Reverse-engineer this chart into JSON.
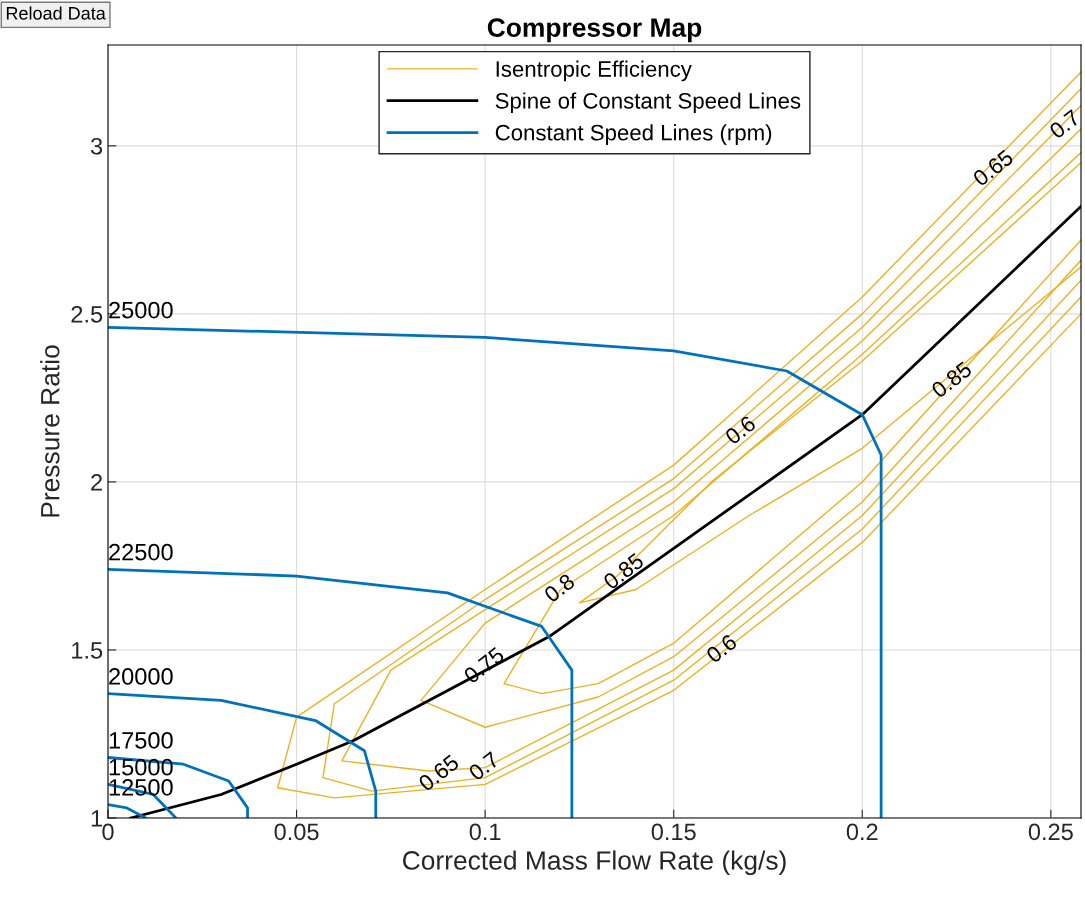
{
  "chart_data": {
    "type": "line",
    "title": "Compressor Map",
    "xlabel": "Corrected Mass Flow Rate (kg/s)",
    "ylabel": "Pressure Ratio",
    "xlim": [
      0,
      0.258
    ],
    "ylim": [
      1,
      3.3
    ],
    "xticks": [
      0,
      0.05,
      0.1,
      0.15,
      0.2,
      0.25
    ],
    "yticks": [
      1,
      1.5,
      2,
      2.5,
      3
    ],
    "grid": true,
    "legend": "top",
    "marker": "none",
    "line_style": "solid",
    "series": [
      {
        "name": "Isentropic Efficiency",
        "color": "#edb120",
        "x": [
          0.258,
          0.2,
          0.15,
          0.1,
          0.05,
          0.045,
          0.06,
          0.1,
          0.15,
          0.2,
          0.258
        ],
        "values": [
          3.22,
          2.55,
          2.05,
          1.68,
          1.3,
          1.09,
          1.06,
          1.1,
          1.38,
          1.82,
          2.5
        ]
      },
      {
        "color": "#edb120",
        "x": [
          0.258,
          0.2,
          0.15,
          0.1,
          0.06,
          0.057,
          0.07,
          0.1,
          0.15,
          0.2,
          0.258
        ],
        "values": [
          3.17,
          2.5,
          2.01,
          1.65,
          1.34,
          1.12,
          1.08,
          1.12,
          1.41,
          1.86,
          2.55
        ]
      },
      {
        "color": "#edb120",
        "x": [
          0.258,
          0.2,
          0.15,
          0.1,
          0.075,
          0.062,
          0.085,
          0.1,
          0.15,
          0.2,
          0.258
        ],
        "values": [
          3.12,
          2.46,
          1.98,
          1.62,
          1.44,
          1.17,
          1.14,
          1.15,
          1.44,
          1.9,
          2.6
        ]
      },
      {
        "color": "#edb120",
        "x": [
          0.258,
          0.2,
          0.15,
          0.1,
          0.083,
          0.1,
          0.13,
          0.15,
          0.2,
          0.258
        ],
        "values": [
          3.05,
          2.42,
          1.94,
          1.58,
          1.35,
          1.27,
          1.36,
          1.48,
          1.94,
          2.66
        ]
      },
      {
        "color": "#edb120",
        "x": [
          0.258,
          0.2,
          0.15,
          0.12,
          0.105,
          0.115,
          0.13,
          0.15,
          0.2,
          0.258
        ],
        "values": [
          2.98,
          2.38,
          1.9,
          1.68,
          1.4,
          1.37,
          1.4,
          1.52,
          2.0,
          2.72
        ]
      },
      {
        "color": "#edb120",
        "x": [
          0.258,
          0.2,
          0.16,
          0.135,
          0.125,
          0.14,
          0.17,
          0.2,
          0.23,
          0.258
        ],
        "values": [
          2.95,
          2.36,
          2.0,
          1.72,
          1.64,
          1.68,
          1.9,
          2.1,
          2.38,
          2.64
        ]
      },
      {
        "name": "Spine of Constant Speed Lines",
        "color": "#000000",
        "x": [
          0.006,
          0.03,
          0.05,
          0.065,
          0.117,
          0.2,
          0.258
        ],
        "values": [
          1.0,
          1.07,
          1.16,
          1.23,
          1.54,
          2.2,
          2.82
        ]
      },
      {
        "name": "Constant Speed Lines (rpm)",
        "color": "#0072bd",
        "x": [
          0,
          0.1,
          0.15,
          0.18,
          0.2,
          0.205,
          0.205
        ],
        "values": [
          2.46,
          2.43,
          2.39,
          2.33,
          2.2,
          2.08,
          1.0
        ]
      },
      {
        "color": "#0072bd",
        "x": [
          0,
          0.05,
          0.09,
          0.115,
          0.123,
          0.123
        ],
        "values": [
          1.74,
          1.72,
          1.67,
          1.57,
          1.44,
          1.0
        ]
      },
      {
        "color": "#0072bd",
        "x": [
          0,
          0.03,
          0.055,
          0.068,
          0.071,
          0.071
        ],
        "values": [
          1.37,
          1.35,
          1.29,
          1.2,
          1.08,
          1.0
        ]
      },
      {
        "color": "#0072bd",
        "x": [
          0,
          0.02,
          0.032,
          0.037,
          0.037
        ],
        "values": [
          1.18,
          1.16,
          1.11,
          1.03,
          1.0
        ]
      },
      {
        "color": "#0072bd",
        "x": [
          0,
          0.012,
          0.018
        ],
        "values": [
          1.1,
          1.07,
          1.0
        ]
      },
      {
        "color": "#0072bd",
        "x": [
          0,
          0.005,
          0.01
        ],
        "values": [
          1.04,
          1.03,
          1.0
        ]
      }
    ],
    "annotations": [
      "Reload Data",
      {
        "text": "25000",
        "x": 0,
        "y": 2.46
      },
      {
        "text": "22500",
        "x": 0,
        "y": 1.74
      },
      {
        "text": "20000",
        "x": 0,
        "y": 1.37
      },
      {
        "text": "17500",
        "x": 0,
        "y": 1.18
      },
      {
        "text": "15000",
        "x": 0,
        "y": 1.1
      },
      {
        "text": "12500",
        "x": 0,
        "y": 1.04
      },
      {
        "text": "0.6",
        "x": 0.168,
        "y": 2.15
      },
      {
        "text": "0.6",
        "x": 0.163,
        "y": 1.5
      },
      {
        "text": "0.65",
        "x": 0.235,
        "y": 2.93
      },
      {
        "text": "0.7",
        "x": 0.254,
        "y": 3.06
      },
      {
        "text": "0.75",
        "x": 0.1,
        "y": 1.45
      },
      {
        "text": "0.8",
        "x": 0.12,
        "y": 1.68
      },
      {
        "text": "0.85",
        "x": 0.137,
        "y": 1.73
      },
      {
        "text": "0.85",
        "x": 0.224,
        "y": 2.3
      },
      {
        "text": "0.65",
        "x": 0.088,
        "y": 1.13
      },
      {
        "text": "0.7",
        "x": 0.1,
        "y": 1.15
      }
    ]
  }
}
